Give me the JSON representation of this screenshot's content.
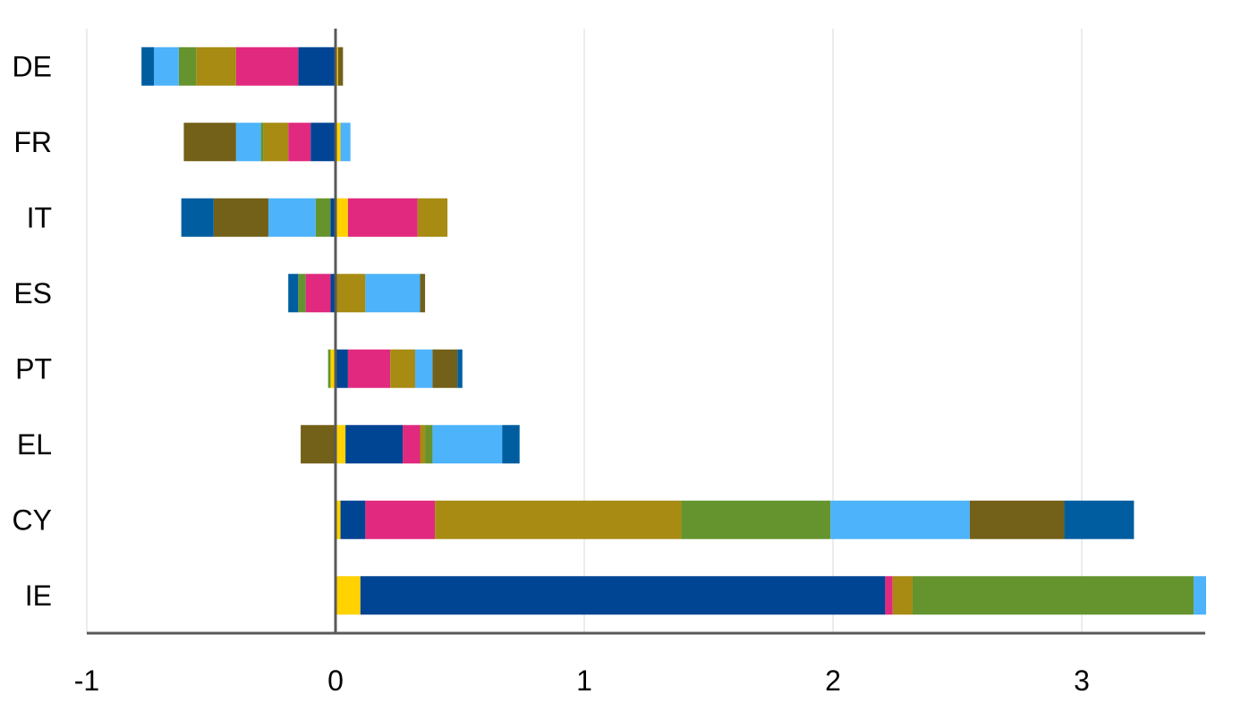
{
  "chart_data": {
    "type": "bar",
    "orientation": "horizontal",
    "stacked": true,
    "categories": [
      "DE",
      "FR",
      "IT",
      "ES",
      "PT",
      "EL",
      "CY",
      "IE"
    ],
    "xlim": [
      -1,
      3.5
    ],
    "xticks": [
      -1,
      0,
      1,
      2,
      3
    ],
    "xtick_labels": [
      "-1",
      "0",
      "1",
      "2",
      "3"
    ],
    "title": "",
    "xlabel": "",
    "ylabel": "",
    "grid": "vertical",
    "legend": "none",
    "segments": {
      "DE": [
        {
          "color": "#ffd200",
          "value": 0.01
        },
        {
          "color": "#736019",
          "value": 0.02
        },
        {
          "color": "#004494",
          "value": -0.15
        },
        {
          "color": "#e0297f",
          "value": -0.25
        },
        {
          "color": "#a78b12",
          "value": -0.16
        },
        {
          "color": "#65942f",
          "value": -0.07
        },
        {
          "color": "#4db3fa",
          "value": -0.1
        },
        {
          "color": "#005ea0",
          "value": -0.05
        }
      ],
      "FR": [
        {
          "color": "#ffd200",
          "value": 0.02
        },
        {
          "color": "#4db3fa",
          "value": 0.04
        },
        {
          "color": "#004494",
          "value": -0.1
        },
        {
          "color": "#e0297f",
          "value": -0.09
        },
        {
          "color": "#a78b12",
          "value": -0.1
        },
        {
          "color": "#65942f",
          "value": -0.01
        },
        {
          "color": "#4db3fa",
          "value": -0.1
        },
        {
          "color": "#736019",
          "value": -0.21
        }
      ],
      "IT": [
        {
          "color": "#ffd200",
          "value": 0.05
        },
        {
          "color": "#e0297f",
          "value": 0.28
        },
        {
          "color": "#a78b12",
          "value": 0.12
        },
        {
          "color": "#004494",
          "value": -0.02
        },
        {
          "color": "#65942f",
          "value": -0.06
        },
        {
          "color": "#4db3fa",
          "value": -0.19
        },
        {
          "color": "#736019",
          "value": -0.22
        },
        {
          "color": "#005ea0",
          "value": -0.13
        }
      ],
      "ES": [
        {
          "color": "#a78b12",
          "value": 0.12
        },
        {
          "color": "#4db3fa",
          "value": 0.22
        },
        {
          "color": "#736019",
          "value": 0.02
        },
        {
          "color": "#004494",
          "value": -0.02
        },
        {
          "color": "#e0297f",
          "value": -0.1
        },
        {
          "color": "#65942f",
          "value": -0.03
        },
        {
          "color": "#005ea0",
          "value": -0.04
        }
      ],
      "PT": [
        {
          "color": "#004494",
          "value": 0.05
        },
        {
          "color": "#e0297f",
          "value": 0.17
        },
        {
          "color": "#a78b12",
          "value": 0.1
        },
        {
          "color": "#4db3fa",
          "value": 0.07
        },
        {
          "color": "#736019",
          "value": 0.1
        },
        {
          "color": "#005ea0",
          "value": 0.02
        },
        {
          "color": "#ffd200",
          "value": -0.02
        },
        {
          "color": "#65942f",
          "value": -0.01
        }
      ],
      "EL": [
        {
          "color": "#ffd200",
          "value": 0.04
        },
        {
          "color": "#004494",
          "value": 0.23
        },
        {
          "color": "#e0297f",
          "value": 0.07
        },
        {
          "color": "#a78b12",
          "value": 0.02
        },
        {
          "color": "#65942f",
          "value": 0.03
        },
        {
          "color": "#4db3fa",
          "value": 0.28
        },
        {
          "color": "#005ea0",
          "value": 0.07
        },
        {
          "color": "#736019",
          "value": -0.14
        }
      ],
      "CY": [
        {
          "color": "#ffd200",
          "value": 0.02
        },
        {
          "color": "#004494",
          "value": 0.1
        },
        {
          "color": "#e0297f",
          "value": 0.28
        },
        {
          "color": "#a78b12",
          "value": 0.99
        },
        {
          "color": "#65942f",
          "value": 0.6
        },
        {
          "color": "#4db3fa",
          "value": 0.56
        },
        {
          "color": "#736019",
          "value": 0.38
        },
        {
          "color": "#005ea0",
          "value": 0.28
        }
      ],
      "IE": [
        {
          "color": "#ffd200",
          "value": 0.1
        },
        {
          "color": "#004494",
          "value": 2.11
        },
        {
          "color": "#e0297f",
          "value": 0.03
        },
        {
          "color": "#a78b12",
          "value": 0.08
        },
        {
          "color": "#65942f",
          "value": 1.13
        },
        {
          "color": "#4db3fa",
          "value": 0.05
        }
      ]
    }
  }
}
